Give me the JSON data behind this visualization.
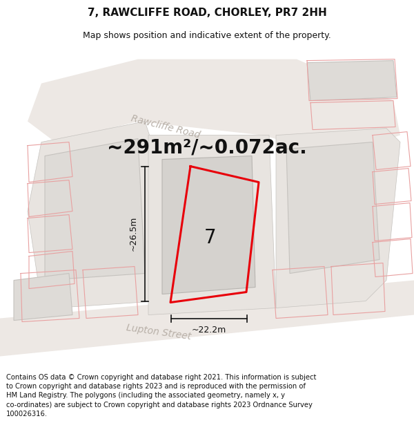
{
  "title": "7, RAWCLIFFE ROAD, CHORLEY, PR7 2HH",
  "subtitle": "Map shows position and indicative extent of the property.",
  "area_label": "~291m²/~0.072ac.",
  "number_label": "7",
  "dim_horizontal": "~22.2m",
  "dim_vertical": "~26.5m",
  "road_label_rawcliffe": "Rawcliffe Road",
  "road_label_lupton": "Lupton Street",
  "footer": "Contains OS data © Crown copyright and database right 2021. This information is subject to Crown copyright and database rights 2023 and is reproduced with the permission of HM Land Registry. The polygons (including the associated geometry, namely x, y co-ordinates) are subject to Crown copyright and database rights 2023 Ordnance Survey 100026316.",
  "bg_color": "#f7f3f0",
  "road_fill": "#ede8e4",
  "building_fill": "#dedbd7",
  "building_edge": "#c5c2be",
  "plot_fill": "#e8e4e0",
  "plot_edge": "#c5c2be",
  "inner_building_fill": "#d5d2ce",
  "inner_building_edge": "#b8b5b1",
  "red_color": "#e8000a",
  "pink_color": "#e8a0a0",
  "dim_color": "#111111",
  "text_color": "#111111",
  "road_label_color": "#b8b0a8",
  "footer_color": "#111111",
  "title_fontsize": 11,
  "subtitle_fontsize": 9,
  "area_fontsize": 20,
  "label_fontsize": 9,
  "number_fontsize": 20,
  "road_label_fontsize": 10,
  "footer_fontsize": 7.2
}
